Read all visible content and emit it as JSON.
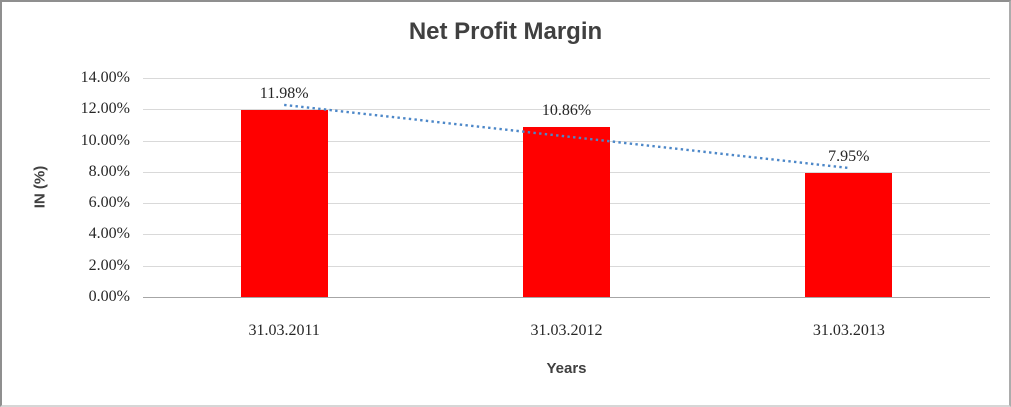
{
  "chart_data": {
    "type": "bar",
    "title": "Net Profit Margin",
    "categories": [
      "31.03.2011",
      "31.03.2012",
      "31.03.2013"
    ],
    "series": [
      {
        "name": "Net Profit Margin",
        "values": [
          11.98,
          10.86,
          7.95
        ]
      }
    ],
    "data_labels": [
      "11.98%",
      "10.86%",
      "7.95%"
    ],
    "xlabel": "Years",
    "ylabel": "IN (%)",
    "ylim": [
      0,
      14
    ],
    "ytick_step": 2,
    "ytick_labels": [
      "0.00%",
      "2.00%",
      "4.00%",
      "6.00%",
      "8.00%",
      "10.00%",
      "12.00%",
      "14.00%"
    ],
    "grid": true,
    "legend": "none",
    "trendline": {
      "type": "linear",
      "style": "dotted"
    },
    "colors": {
      "bar": "#ff0000",
      "trendline": "#4c87c8",
      "gridline": "#d9d9d9",
      "axis_line": "#a6a6a6",
      "title_text": "#404040",
      "tick_text": "#262626"
    }
  }
}
